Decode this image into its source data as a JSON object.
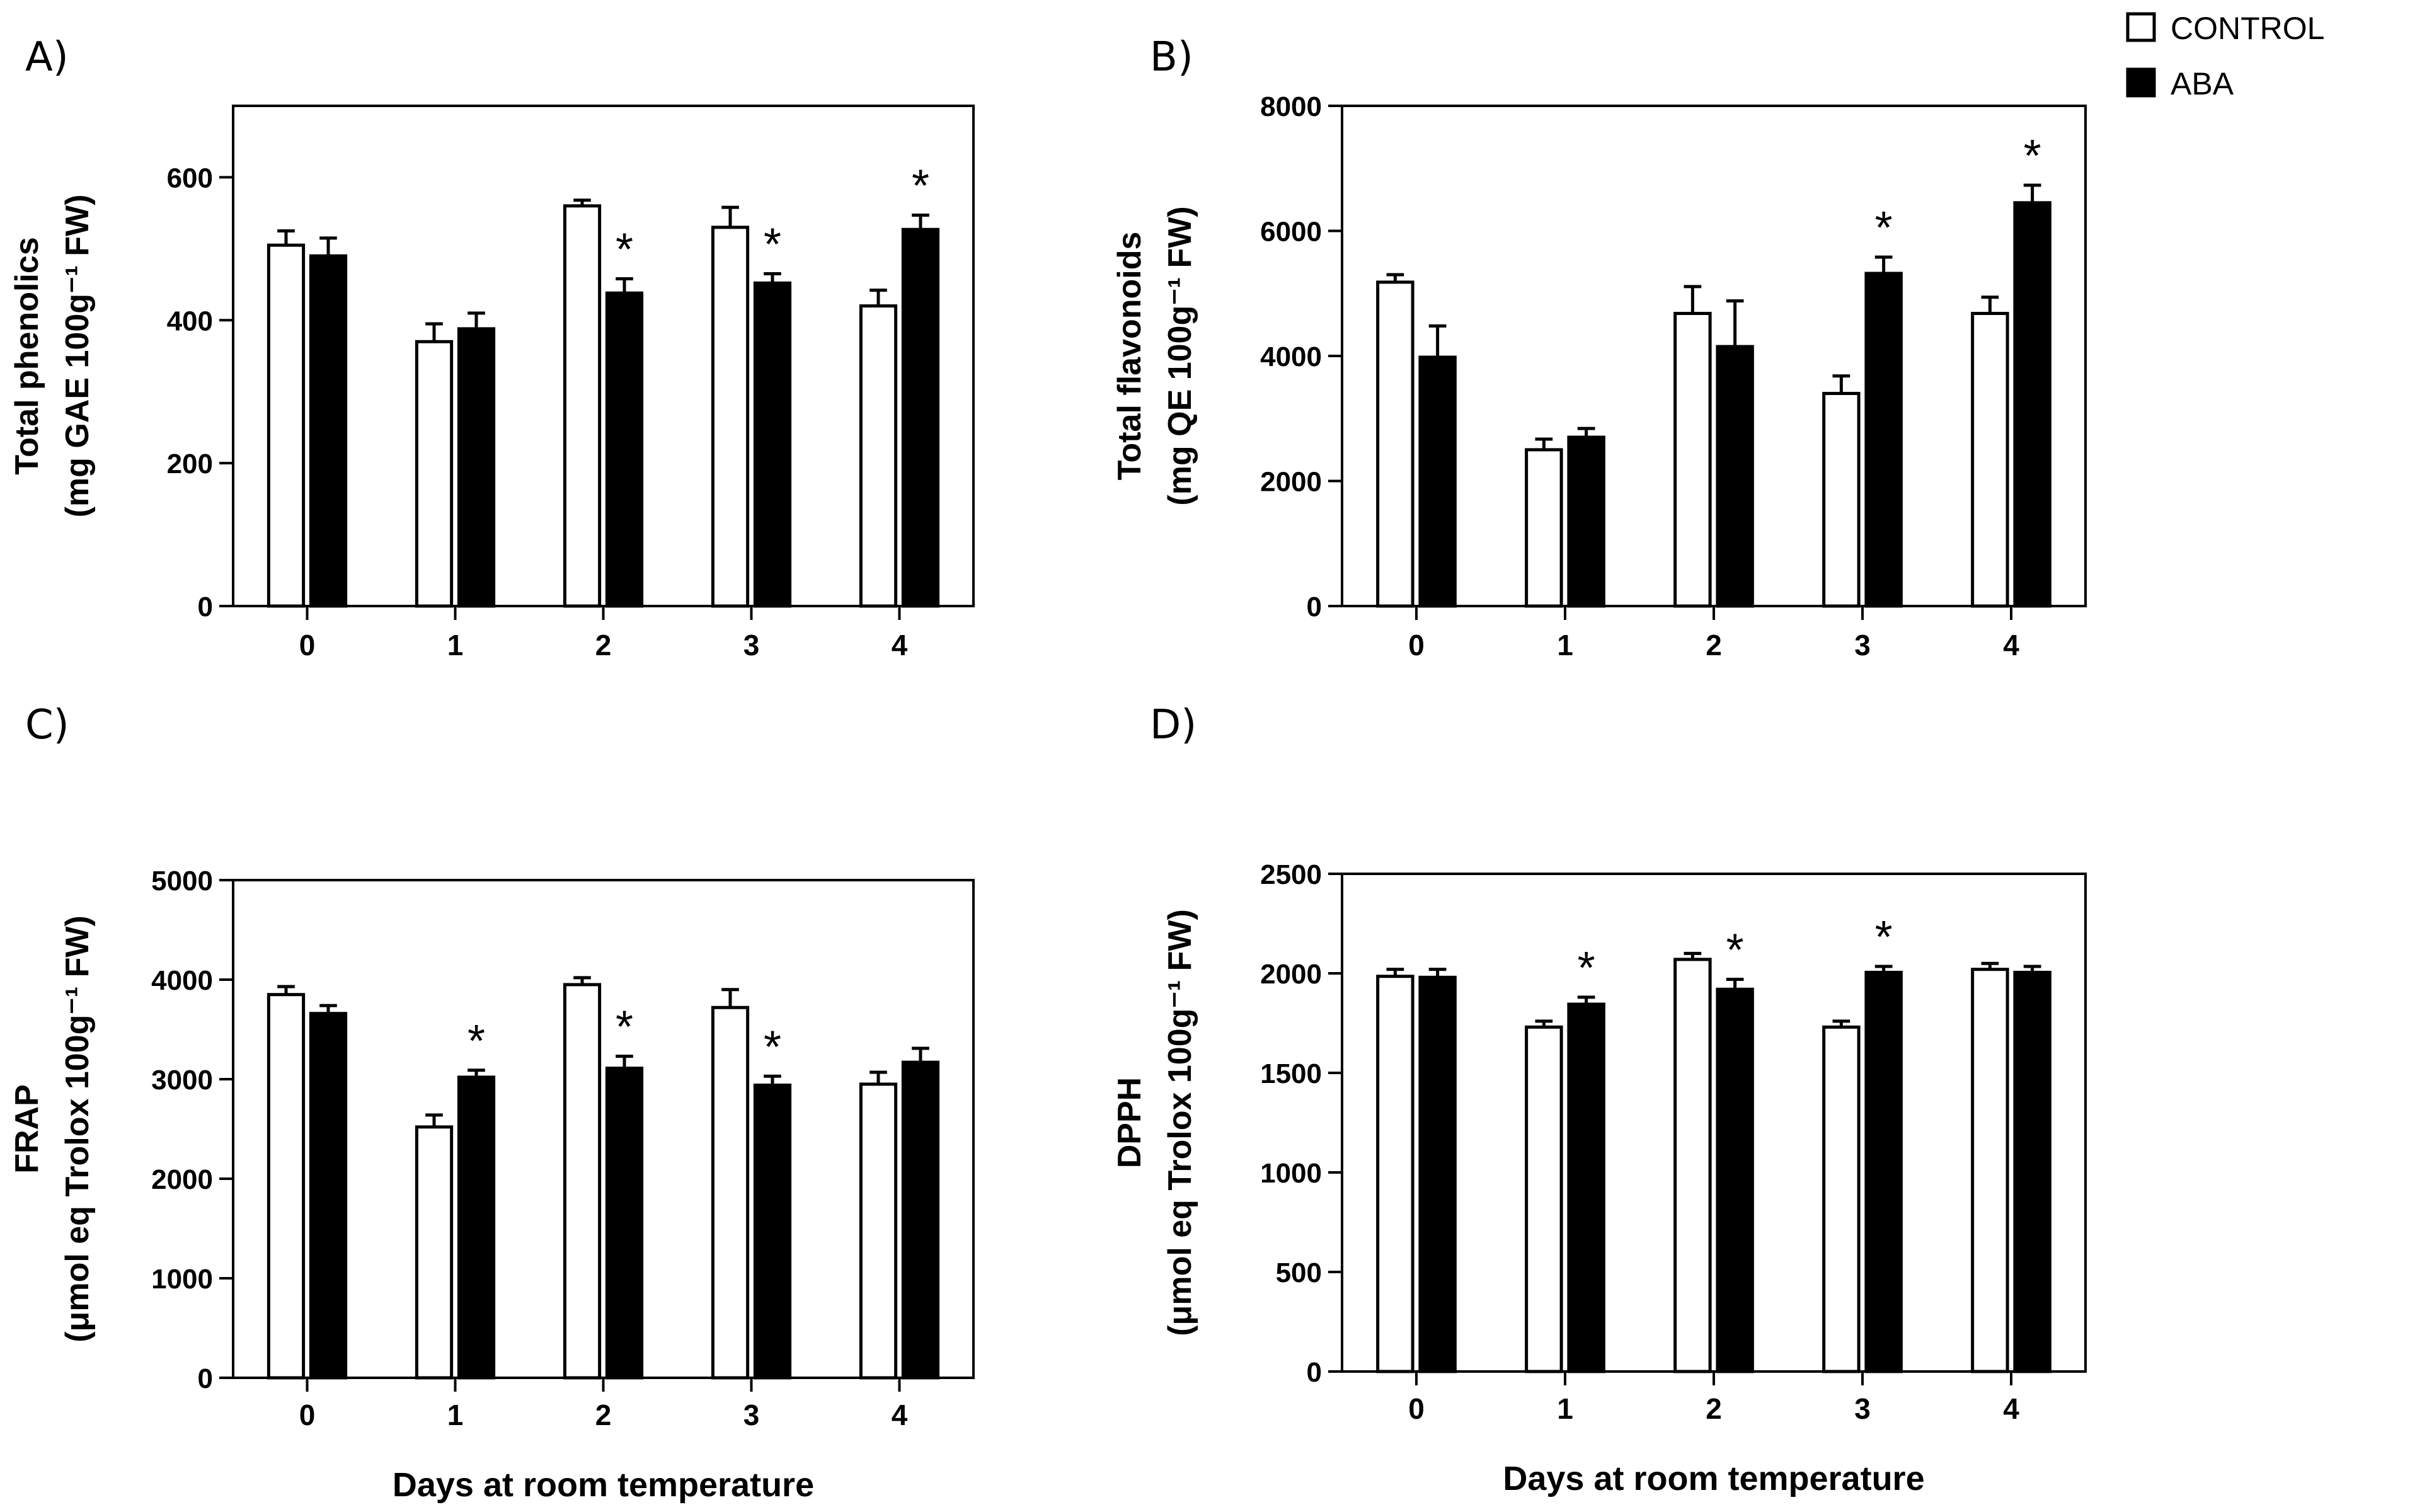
{
  "legend": {
    "entries": [
      {
        "name": "CONTROL",
        "fill": "#ffffff"
      },
      {
        "name": "ABA",
        "fill": "#000000"
      }
    ]
  },
  "colors": {
    "control": "#ffffff",
    "aba": "#000000",
    "stroke": "#000000"
  },
  "chart_data": [
    {
      "type": "bar",
      "panel": "A)",
      "ylabel_lines": [
        "Total phenolics",
        "(mg GAE 100g⁻¹ FW)"
      ],
      "xlabel": "",
      "categories": [
        "0",
        "1",
        "2",
        "3",
        "4"
      ],
      "ylim": [
        0,
        700
      ],
      "yticks": [
        0,
        200,
        400,
        600
      ],
      "series": [
        {
          "name": "CONTROL",
          "values": [
            505,
            370,
            560,
            530,
            420
          ],
          "errors": [
            20,
            25,
            8,
            28,
            22
          ]
        },
        {
          "name": "ABA",
          "values": [
            490,
            388,
            438,
            452,
            527
          ],
          "errors": [
            25,
            22,
            20,
            13,
            20
          ]
        }
      ],
      "significance": [
        null,
        null,
        "*",
        "*",
        "*"
      ]
    },
    {
      "type": "bar",
      "panel": "B)",
      "ylabel_lines": [
        "Total flavonoids",
        "(mg QE 100g⁻¹ FW)"
      ],
      "xlabel": "",
      "categories": [
        "0",
        "1",
        "2",
        "3",
        "4"
      ],
      "ylim": [
        0,
        8000
      ],
      "yticks": [
        0,
        2000,
        4000,
        6000,
        8000
      ],
      "series": [
        {
          "name": "CONTROL",
          "values": [
            5180,
            2500,
            4680,
            3400,
            4680
          ],
          "errors": [
            120,
            170,
            430,
            280,
            260
          ]
        },
        {
          "name": "ABA",
          "values": [
            3980,
            2700,
            4150,
            5320,
            6450
          ],
          "errors": [
            500,
            140,
            730,
            260,
            280
          ]
        }
      ],
      "significance": [
        null,
        null,
        null,
        "*",
        "*"
      ]
    },
    {
      "type": "bar",
      "panel": "C)",
      "ylabel_lines": [
        "FRAP",
        "(μmol eq Trolox 100g⁻¹ FW)"
      ],
      "xlabel": "Days at room temperature",
      "categories": [
        "0",
        "1",
        "2",
        "3",
        "4"
      ],
      "ylim": [
        0,
        5000
      ],
      "yticks": [
        0,
        1000,
        2000,
        3000,
        4000,
        5000
      ],
      "series": [
        {
          "name": "CONTROL",
          "values": [
            3850,
            2520,
            3950,
            3720,
            2950
          ],
          "errors": [
            80,
            120,
            70,
            180,
            120
          ]
        },
        {
          "name": "ABA",
          "values": [
            3660,
            3020,
            3110,
            2940,
            3170
          ],
          "errors": [
            80,
            70,
            120,
            90,
            140
          ]
        }
      ],
      "significance": [
        null,
        "*",
        "*",
        "*",
        null
      ]
    },
    {
      "type": "bar",
      "panel": "D)",
      "ylabel_lines": [
        "DPPH",
        "(μmol eq Trolox 100g⁻¹ FW)"
      ],
      "xlabel": "Days at room temperature",
      "categories": [
        "0",
        "1",
        "2",
        "3",
        "4"
      ],
      "ylim": [
        0,
        2500
      ],
      "yticks": [
        0,
        500,
        1000,
        1500,
        2000,
        2500
      ],
      "series": [
        {
          "name": "CONTROL",
          "values": [
            1985,
            1730,
            2070,
            1730,
            2020
          ],
          "errors": [
            35,
            30,
            30,
            30,
            30
          ]
        },
        {
          "name": "ABA",
          "values": [
            1980,
            1845,
            1920,
            2005,
            2005
          ],
          "errors": [
            40,
            35,
            50,
            30,
            30
          ]
        }
      ],
      "significance": [
        null,
        "*",
        "*",
        "*",
        null
      ]
    }
  ]
}
